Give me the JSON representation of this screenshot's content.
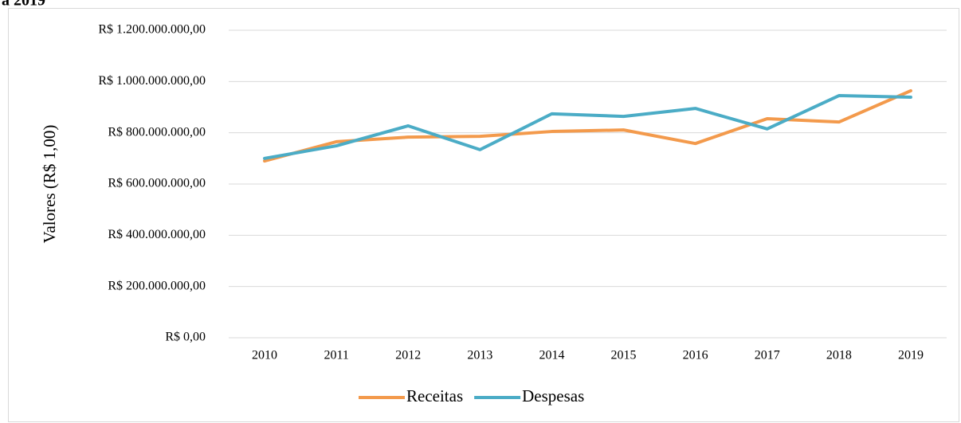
{
  "chart_data": {
    "type": "line",
    "title": "a 2019",
    "y_label": "Valores (R$ 1,00)",
    "categories": [
      "2010",
      "2011",
      "2012",
      "2013",
      "2014",
      "2015",
      "2016",
      "2017",
      "2018",
      "2019"
    ],
    "series": [
      {
        "name": "Receitas",
        "color": "#f39a4c",
        "values": [
          690000000,
          765000000,
          783000000,
          786000000,
          805000000,
          811000000,
          758000000,
          855000000,
          842000000,
          964000000
        ]
      },
      {
        "name": "Despesas",
        "color": "#4bacc6",
        "values": [
          700000000,
          749000000,
          827000000,
          734000000,
          874000000,
          864000000,
          895000000,
          815000000,
          945000000,
          939000000
        ]
      }
    ],
    "ylim": [
      0,
      1200000000
    ],
    "yticks": [
      {
        "value": 0,
        "label": "R$ 0,00"
      },
      {
        "value": 200000000,
        "label": "R$ 200.000.000,00"
      },
      {
        "value": 400000000,
        "label": "R$ 400.000.000,00"
      },
      {
        "value": 600000000,
        "label": "R$ 600.000.000,00"
      },
      {
        "value": 800000000,
        "label": "R$ 800.000.000,00"
      },
      {
        "value": 1000000000,
        "label": "R$ 1.000.000.000,00"
      },
      {
        "value": 1200000000,
        "label": "R$ 1.200.000.000,00"
      }
    ],
    "grid": true,
    "legend": "bottom"
  }
}
